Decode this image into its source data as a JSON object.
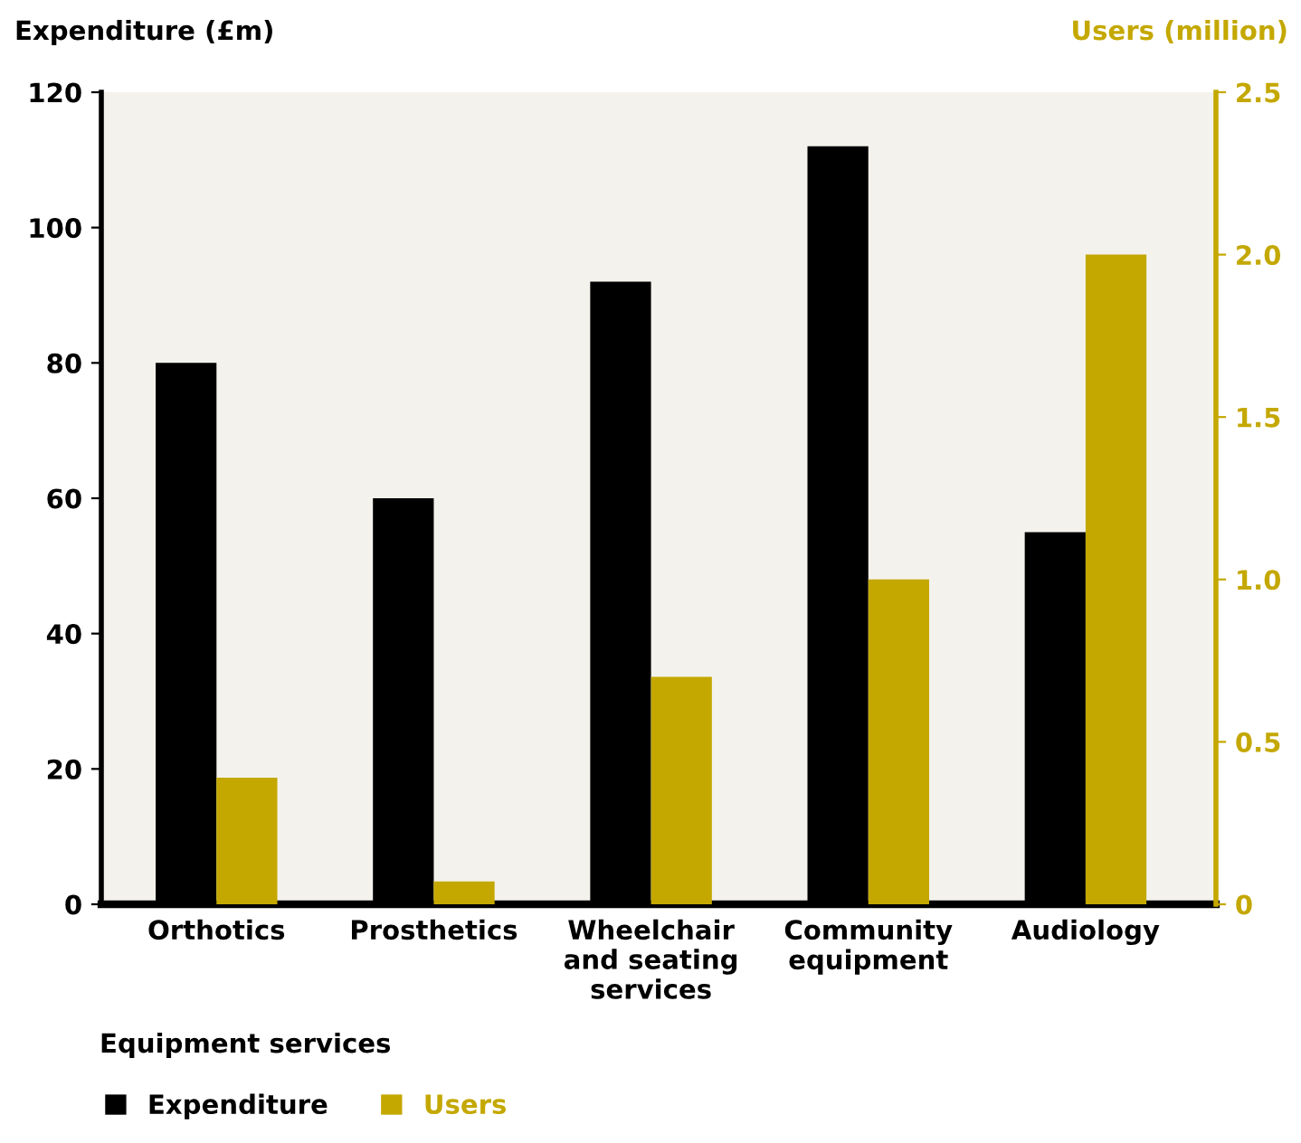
{
  "chart_data": {
    "type": "bar",
    "xlabel": "Equipment services",
    "ylabel": "Expenditure (£m)",
    "y2label": "Users (million)",
    "categories": [
      "Orthotics",
      "Prosthetics",
      "Wheelchair\nand seating\nservices",
      "Community\nequipment",
      "Audiology"
    ],
    "series": [
      {
        "name": "Expenditure",
        "color": "#000000",
        "values": [
          80,
          60,
          92,
          112,
          55
        ]
      },
      {
        "name": "Users",
        "color": "#c4a800",
        "axis": "y2",
        "values": [
          0.39,
          0.07,
          0.7,
          1.0,
          2.0
        ]
      }
    ],
    "ylim": [
      0,
      120
    ],
    "yticks": [
      0,
      20,
      40,
      60,
      80,
      100,
      120
    ],
    "y2lim": [
      0,
      2.5
    ],
    "y2ticks": [
      0,
      {
        "value": 0.5,
        "label": "0.5"
      },
      {
        "value": 1.0,
        "label": "1.0"
      },
      {
        "value": 1.5,
        "label": "1.5"
      },
      {
        "value": 2.0,
        "label": "2.0"
      },
      {
        "value": 2.5,
        "label": "2.5"
      }
    ],
    "grid": false,
    "legend": "bottom left"
  }
}
